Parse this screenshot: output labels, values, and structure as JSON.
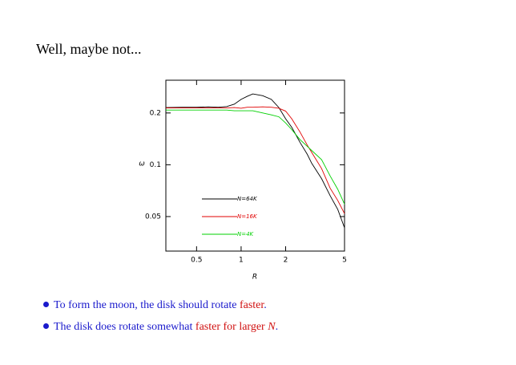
{
  "title": "Well, maybe not...",
  "bullets": [
    [
      {
        "text": "To form the moon, the disk should rotate ",
        "color": "#1a1acc"
      },
      {
        "text": "faster",
        "color": "#d01010"
      },
      {
        "text": ".",
        "color": "#1a1acc"
      }
    ],
    [
      {
        "text": "The disk does rotate somewhat ",
        "color": "#1a1acc"
      },
      {
        "text": "faster for larger ",
        "color": "#d01010"
      },
      {
        "text": "N",
        "color": "#d01010",
        "italic": true
      },
      {
        "text": ".",
        "color": "#1a1acc"
      }
    ]
  ],
  "chart_data": {
    "type": "line",
    "x_label": "R",
    "y_label": "ω",
    "xscale": "log",
    "yscale": "log",
    "xlim": [
      0.31,
      5
    ],
    "ylim": [
      0.0315,
      0.31
    ],
    "xticks": [
      0.5,
      1,
      2,
      5
    ],
    "yticks": [
      0.05,
      0.1,
      0.2
    ],
    "legend": "lower left",
    "x": [
      0.31,
      0.4,
      0.5,
      0.6,
      0.7,
      0.8,
      0.9,
      1,
      1.1,
      1.2,
      1.4,
      1.6,
      1.8,
      2,
      2.2,
      2.5,
      2.8,
      3,
      3.5,
      4,
      4.5,
      5
    ],
    "series": [
      {
        "name": "N=64K",
        "color": "#000000",
        "values": [
          0.215,
          0.216,
          0.216,
          0.217,
          0.216,
          0.218,
          0.225,
          0.24,
          0.25,
          0.258,
          0.252,
          0.24,
          0.215,
          0.185,
          0.165,
          0.135,
          0.115,
          0.102,
          0.083,
          0.066,
          0.055,
          0.043
        ]
      },
      {
        "name": "N=16K",
        "color": "#e00000",
        "values": [
          0.214,
          0.214,
          0.214,
          0.214,
          0.214,
          0.214,
          0.215,
          0.213,
          0.216,
          0.216,
          0.217,
          0.216,
          0.213,
          0.205,
          0.185,
          0.155,
          0.13,
          0.118,
          0.095,
          0.073,
          0.062,
          0.052
        ]
      },
      {
        "name": "N=4K",
        "color": "#00d000",
        "values": [
          0.208,
          0.208,
          0.208,
          0.208,
          0.208,
          0.208,
          0.206,
          0.206,
          0.206,
          0.206,
          0.2,
          0.195,
          0.19,
          0.175,
          0.16,
          0.14,
          0.128,
          0.121,
          0.107,
          0.086,
          0.072,
          0.059
        ]
      }
    ]
  }
}
